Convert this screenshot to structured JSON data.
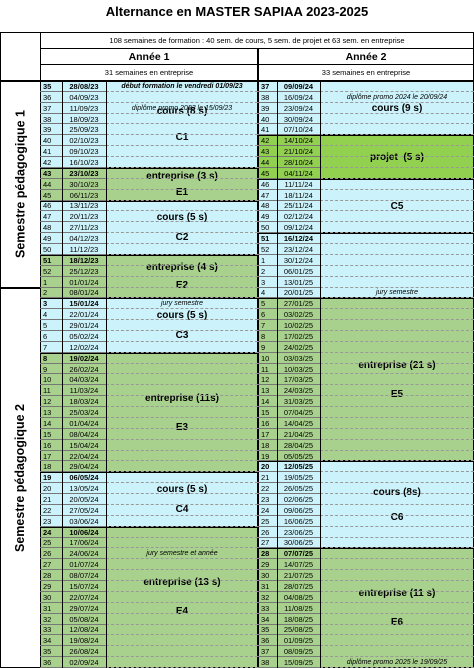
{
  "title": "Alternance en MASTER SAPIAA 2023-2025",
  "table": {
    "summary": "108 semaines de formation : 40 sem. de cours, 5 sem. de projet et 63 sem. en entreprise",
    "semesters": [
      {
        "label": "Semestre pédagogique 1",
        "start": "28/08/23",
        "end": "01/01/24"
      },
      {
        "label": "Semestre pédagogique 2",
        "start": "08/01/24",
        "end": "02/09/24"
      }
    ],
    "years": [
      {
        "label": "Année 1",
        "subtitle": "31 semaines en entreprise",
        "weeks": [
          35,
          36,
          37,
          38,
          39,
          40,
          41,
          42,
          43,
          44,
          45,
          46,
          47,
          48,
          49,
          50,
          51,
          52,
          1,
          2,
          3,
          4,
          5,
          6,
          7,
          8,
          9,
          10,
          11,
          12,
          13,
          14,
          15,
          16,
          17,
          18,
          19,
          20,
          21,
          22,
          23,
          24,
          25,
          26,
          27,
          28,
          29,
          30,
          31,
          32,
          33,
          34,
          35,
          36
        ],
        "dates": [
          "28/08/23",
          "04/09/23",
          "11/09/23",
          "18/09/23",
          "25/09/23",
          "02/10/23",
          "09/10/23",
          "16/10/23",
          "23/10/23",
          "30/10/23",
          "06/11/23",
          "13/11/23",
          "20/11/23",
          "27/11/23",
          "04/12/23",
          "11/12/23",
          "18/12/23",
          "25/12/23",
          "01/01/24",
          "08/01/24",
          "15/01/24",
          "22/01/24",
          "29/01/24",
          "05/02/24",
          "12/02/24",
          "19/02/24",
          "26/02/24",
          "04/03/24",
          "11/03/24",
          "18/03/24",
          "25/03/24",
          "01/04/24",
          "08/04/24",
          "15/04/24",
          "22/04/24",
          "29/04/24",
          "06/05/24",
          "13/05/24",
          "20/05/24",
          "27/05/24",
          "03/06/24",
          "10/06/24",
          "17/06/24",
          "24/06/24",
          "01/07/24",
          "08/07/24",
          "15/07/24",
          "22/07/24",
          "29/07/24",
          "05/08/24",
          "12/08/24",
          "19/08/24",
          "26/08/24",
          "02/09/24"
        ],
        "bold_dates": [
          "28/08/23",
          "23/10/23",
          "18/12/23",
          "15/01/24",
          "19/02/24",
          "06/05/24",
          "10/06/24"
        ],
        "blocks": [
          {
            "start": "28/08/23",
            "end": "16/10/23",
            "color": "#ccf3fb",
            "label": "cours (8 s)",
            "code": "C1"
          },
          {
            "start": "23/10/23",
            "end": "06/11/23",
            "color": "#a9d18e",
            "label": "entreprise (3 s)",
            "code": "E1"
          },
          {
            "start": "13/11/23",
            "end": "11/12/23",
            "color": "#ccf3fb",
            "label": "cours (5 s)",
            "code": "C2"
          },
          {
            "start": "18/12/23",
            "end": "08/01/24",
            "color": "#a9d18e",
            "label": "entreprise (4 s)",
            "code": "E2"
          },
          {
            "start": "15/01/24",
            "end": "12/02/24",
            "color": "#ccf3fb",
            "label": "cours (5 s)",
            "code": "C3"
          },
          {
            "start": "19/02/24",
            "end": "29/04/24",
            "color": "#a9d18e",
            "label": "entreprise (11s)",
            "code": "E3"
          },
          {
            "start": "06/05/24",
            "end": "03/06/24",
            "color": "#ccf3fb",
            "label": "cours (5 s)",
            "code": "C4"
          },
          {
            "start": "10/06/24",
            "end": "02/09/24",
            "color": "#a9d18e",
            "label": "entreprise (13 s)",
            "code": "E4"
          }
        ],
        "notes": [
          {
            "date": "28/08/23",
            "text": "début formation le vendredi 01/09/23"
          },
          {
            "date": "11/09/23",
            "text": "diplôme promo 2023 le 15/09/23"
          },
          {
            "date": "15/01/24",
            "text": "jury semestre"
          },
          {
            "date": "24/06/24",
            "text": "jury semestre et année"
          }
        ]
      },
      {
        "label": "Année 2",
        "subtitle": "33 semaines en entreprise",
        "weeks": [
          37,
          38,
          39,
          40,
          41,
          42,
          43,
          44,
          45,
          46,
          47,
          48,
          49,
          50,
          51,
          52,
          1,
          2,
          3,
          4,
          5,
          6,
          7,
          8,
          9,
          10,
          11,
          12,
          13,
          14,
          15,
          16,
          17,
          18,
          19,
          20,
          21,
          22,
          23,
          24,
          25,
          26,
          27,
          28,
          29,
          30,
          31,
          32,
          33,
          34,
          35,
          36,
          37,
          38
        ],
        "dates": [
          "09/09/24",
          "16/09/24",
          "23/09/24",
          "30/09/24",
          "07/10/24",
          "14/10/24",
          "21/10/24",
          "28/10/24",
          "04/11/24",
          "11/11/24",
          "18/11/24",
          "25/11/24",
          "02/12/24",
          "09/12/24",
          "16/12/24",
          "23/12/24",
          "30/12/24",
          "06/01/25",
          "13/01/25",
          "20/01/25",
          "27/01/25",
          "03/02/25",
          "10/02/25",
          "17/02/25",
          "24/02/25",
          "03/03/25",
          "10/03/25",
          "17/03/25",
          "24/03/25",
          "31/03/25",
          "07/04/25",
          "14/04/25",
          "21/04/25",
          "28/04/25",
          "05/05/25",
          "12/05/25",
          "19/05/25",
          "26/05/25",
          "02/06/25",
          "09/06/25",
          "16/06/25",
          "23/06/25",
          "30/06/25",
          "07/07/25",
          "14/07/25",
          "21/07/25",
          "28/07/25",
          "04/08/25",
          "11/08/25",
          "18/08/25",
          "25/08/25",
          "01/09/25",
          "08/09/25",
          "15/09/25"
        ],
        "bold_dates": [
          "09/09/24",
          "16/12/24",
          "12/05/25",
          "07/07/25"
        ],
        "blocks": [
          {
            "start": "09/09/24",
            "end": "07/10/24",
            "color": "#ccf3fb",
            "label": "cours (9 s)"
          },
          {
            "start": "14/10/24",
            "end": "04/11/24",
            "color": "#92d050",
            "label": "projet  (5 s)"
          },
          {
            "start": "11/11/24",
            "end": "09/12/24",
            "color": "#ccf3fb",
            "code": "C5"
          },
          {
            "start": "16/12/24",
            "end": "20/01/25",
            "color": "#ccf3fb"
          },
          {
            "start": "27/01/25",
            "end": "05/05/25",
            "color": "#a9d18e",
            "label": "entreprise (21 s)",
            "code": "E5"
          },
          {
            "start": "12/05/25",
            "end": "30/06/25",
            "color": "#ccf3fb",
            "label": "cours (8s)",
            "code": "C6"
          },
          {
            "start": "07/07/25",
            "end": "15/09/25",
            "color": "#a9d18e",
            "label": "entreprise (11 s)",
            "code": "E6"
          }
        ],
        "notes": [
          {
            "date": "16/09/24",
            "text": "diplôme promo 2024 le 20/09/24"
          },
          {
            "date": "20/01/25",
            "text": "jury semestre"
          },
          {
            "date": "15/09/25",
            "text": "diplôme promo 2025 le 19/09/25"
          }
        ]
      }
    ]
  }
}
